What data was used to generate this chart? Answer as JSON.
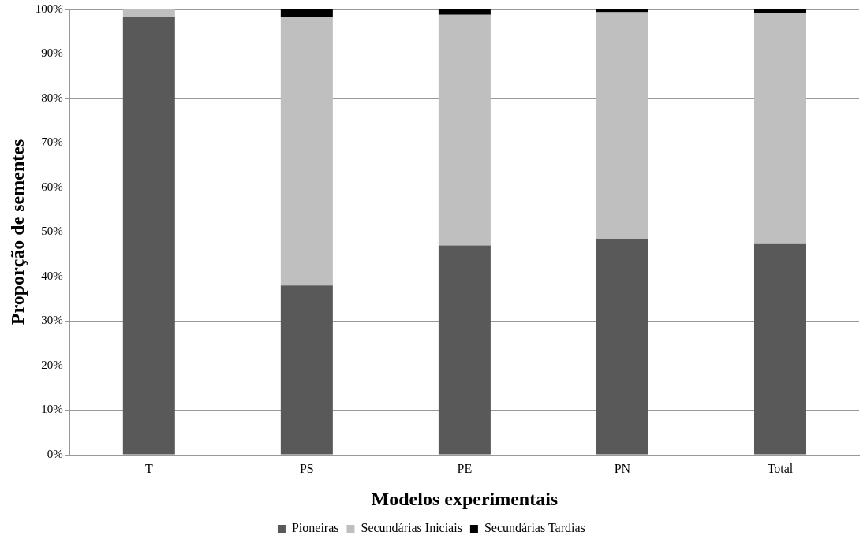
{
  "chart_data": {
    "type": "bar",
    "stacked": true,
    "xlabel": "Modelos experimentais",
    "ylabel": "Proporção de sementes",
    "categories": [
      "T",
      "PS",
      "PE",
      "PN",
      "Total"
    ],
    "series": [
      {
        "name": "Pioneiras",
        "color": "#595959",
        "values": [
          98.3,
          38,
          47,
          48.5,
          47.5
        ]
      },
      {
        "name": "Secundárias Iniciais",
        "color": "#bfbfbf",
        "values": [
          1.7,
          60.3,
          51.8,
          50.9,
          51.7
        ]
      },
      {
        "name": "Secundárias Tardias",
        "color": "#000000",
        "values": [
          0,
          1.7,
          1.2,
          0.6,
          0.8
        ]
      }
    ],
    "ylim": [
      0,
      100
    ],
    "yticks": [
      {
        "value": 0,
        "label": "0%"
      },
      {
        "value": 10,
        "label": "10%"
      },
      {
        "value": 20,
        "label": "20%"
      },
      {
        "value": 30,
        "label": "30%"
      },
      {
        "value": 40,
        "label": "40%"
      },
      {
        "value": 50,
        "label": "50%"
      },
      {
        "value": 60,
        "label": "60%"
      },
      {
        "value": 70,
        "label": "70%"
      },
      {
        "value": 80,
        "label": "80%"
      },
      {
        "value": 90,
        "label": "90%"
      },
      {
        "value": 100,
        "label": "100%"
      }
    ],
    "grid": "y",
    "legend": "bottom"
  }
}
